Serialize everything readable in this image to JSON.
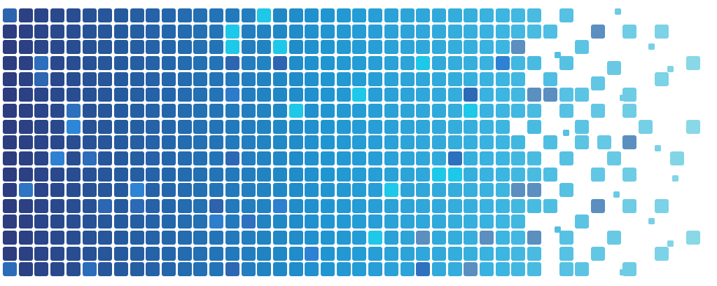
{
  "graphic": {
    "description_type": "abstract pixel mosaic",
    "palette": {
      "navy": "#2c3d80",
      "blue": "#2466ab",
      "azure": "#1f96d2",
      "sky": "#3cb5e0",
      "light_cyan": "#8fdbe8",
      "accent_dark": "#5a8fc0",
      "accent_bright": "#1ec8e8",
      "accent_mid": "#2e86d8",
      "background": "#ffffff"
    }
  }
}
